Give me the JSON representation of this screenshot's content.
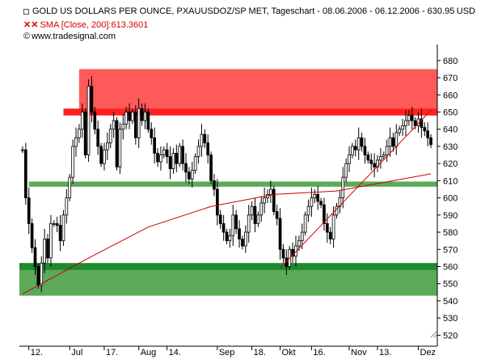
{
  "header": {
    "title": "GOLD US DOLLARS PER OUNCE, PXAUUSDOZ/SP MET, Tageschart - 08.06.2006 - 06.12.2006 - 630.95",
    "currency": "USD",
    "sma_label": "SMA [Close, 200]:613.3601",
    "source": "www.tradesignal.com",
    "copyright_symbol": "©"
  },
  "colors": {
    "resistance_zone": "#ff5a5a",
    "resistance_band": "#ff2020",
    "support_zone": "#5aaa5a",
    "support_band": "#1f8a2e",
    "support_line": "#5aaa5a",
    "candle": "#000000",
    "sma": "#c80000",
    "trendline": "#d40000"
  },
  "chart_data": {
    "type": "candlestick",
    "title": "GOLD US DOLLARS PER OUNCE, PXAUUSDOZ/SP MET, Tageschart - 08.06.2006 - 06.12.2006 - 630.95",
    "ylabel": "USD",
    "ylim": [
      515,
      687
    ],
    "yticks": [
      520,
      530,
      540,
      550,
      560,
      570,
      580,
      590,
      600,
      610,
      620,
      630,
      640,
      650,
      660,
      670,
      680
    ],
    "xticks": [
      "12.",
      "Jul",
      "17.",
      "Aug",
      "14.",
      "Sep",
      "18.",
      "Okt",
      "16.",
      "Nov",
      "13.",
      "Dez"
    ],
    "xtick_index": [
      2,
      15,
      26,
      37,
      46,
      62,
      73,
      82,
      92,
      104,
      113,
      126
    ],
    "num_days": 131,
    "closes": [
      628,
      600,
      585,
      571,
      560,
      549,
      562,
      576,
      565,
      585,
      585,
      584,
      575,
      590,
      600,
      612,
      630,
      635,
      640,
      650,
      625,
      665,
      650,
      640,
      630,
      620,
      628,
      632,
      640,
      645,
      618,
      640,
      643,
      650,
      645,
      650,
      635,
      652,
      645,
      650,
      640,
      635,
      626,
      621,
      625,
      628,
      624,
      617,
      626,
      620,
      630,
      620,
      615,
      611,
      616,
      624,
      630,
      637,
      632,
      625,
      610,
      605,
      590,
      585,
      580,
      575,
      578,
      590,
      582,
      576,
      572,
      580,
      590,
      595,
      585,
      590,
      597,
      600,
      602,
      605,
      592,
      588,
      570,
      565,
      560,
      570,
      566,
      572,
      575,
      580,
      590,
      595,
      600,
      602,
      598,
      596,
      585,
      580,
      576,
      590,
      595,
      600,
      612,
      620,
      625,
      630,
      628,
      635,
      630,
      625,
      622,
      620,
      618,
      622,
      624,
      625,
      630,
      635,
      630,
      638,
      640,
      642,
      645,
      648,
      645,
      642,
      646,
      641,
      639,
      635,
      631
    ],
    "sma": {
      "name": "SMA [Close, 200]",
      "last": 613.3601,
      "x": [
        0,
        20,
        40,
        60,
        80,
        100,
        115,
        130
      ],
      "y": [
        544,
        564,
        583,
        595,
        602,
        604,
        609,
        614
      ]
    },
    "trendlines": [
      {
        "x": [
          82,
          130
        ],
        "y": [
          559,
          651
        ]
      }
    ],
    "zones": [
      {
        "name": "resistance",
        "lo": 650,
        "hi": 675,
        "x_from": 18
      },
      {
        "name": "resistance-band",
        "lo": 648,
        "hi": 652,
        "x_from": 13
      },
      {
        "name": "support",
        "lo": 543,
        "hi": 562,
        "x_from": 0
      },
      {
        "name": "support-band",
        "lo": 558,
        "hi": 562,
        "x_from": 0
      },
      {
        "name": "mid-support-line",
        "lo": 606.5,
        "hi": 609.5,
        "x_from": 2
      }
    ]
  }
}
